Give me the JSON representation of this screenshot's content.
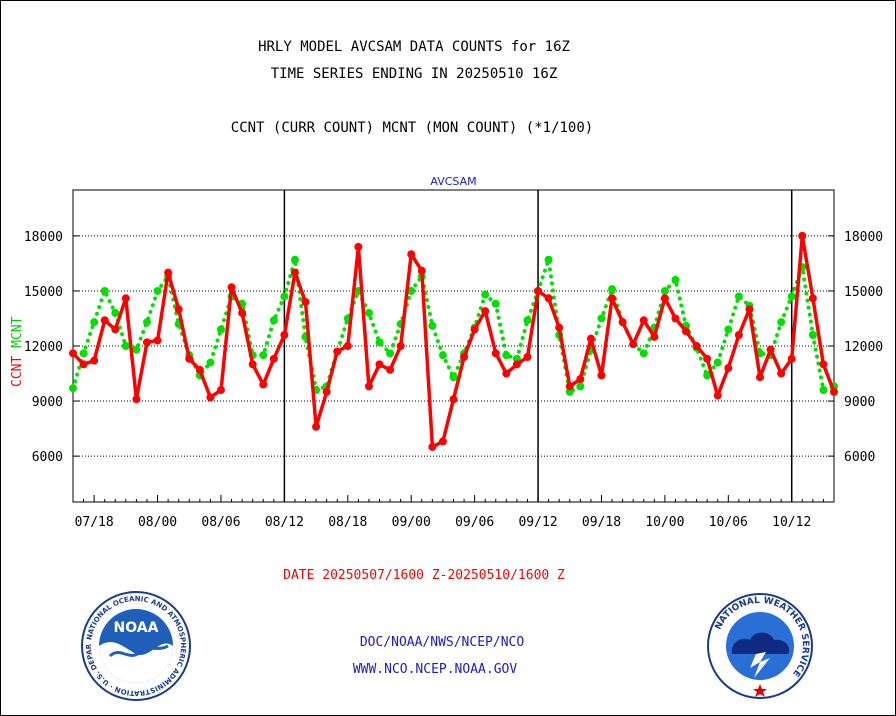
{
  "chart_data": {
    "type": "line",
    "title_lines": [
      "HRLY MODEL AVCSAM DATA COUNTS for 16Z",
      "TIME SERIES ENDING IN 20250510 16Z"
    ],
    "subtitle": "CCNT (CURR COUNT) MCNT (MON COUNT) (*1/100)",
    "panel_label": "AVCSAM",
    "ylabel_ccnt": "CCNT",
    "ylabel_mcnt": "MCNT",
    "ylim": [
      3500,
      20500
    ],
    "yticks": [
      6000,
      9000,
      12000,
      15000,
      18000
    ],
    "x_tick_labels": [
      "07/18",
      "08/00",
      "08/06",
      "08/12",
      "08/18",
      "09/00",
      "09/06",
      "09/12",
      "09/18",
      "10/00",
      "10/06",
      "10/12"
    ],
    "x_tick_hours": [
      2,
      8,
      14,
      20,
      26,
      32,
      38,
      44,
      50,
      56,
      62,
      68
    ],
    "xlim": [
      0,
      72
    ],
    "day_boundaries_hours": [
      20,
      44,
      68
    ],
    "grid": true,
    "date_range_label": "DATE 20250507/1600 Z-20250510/1600 Z",
    "series": [
      {
        "name": "CCNT",
        "color": "#ff0000",
        "style": "solid",
        "x": [
          0,
          1,
          2,
          3,
          4,
          5,
          6,
          7,
          8,
          9,
          10,
          11,
          12,
          13,
          14,
          15,
          16,
          17,
          18,
          19,
          20,
          21,
          22,
          23,
          24,
          25,
          26,
          27,
          28,
          29,
          30,
          31,
          32,
          33,
          34,
          35,
          36,
          37,
          38,
          39,
          40,
          41,
          42,
          43,
          44,
          45,
          46,
          47,
          48,
          49,
          50,
          51,
          52,
          53,
          54,
          55,
          56,
          57,
          58,
          59,
          60,
          61,
          62,
          63,
          64,
          65,
          66,
          67,
          68,
          69,
          70,
          71,
          72
        ],
        "values": [
          11600,
          11000,
          11200,
          13400,
          12900,
          14600,
          9100,
          12200,
          12300,
          16000,
          14000,
          11300,
          10700,
          9200,
          9600,
          15200,
          13800,
          11000,
          9900,
          11300,
          12600,
          16000,
          14400,
          7600,
          9500,
          11700,
          12000,
          17400,
          9800,
          11000,
          10700,
          12000,
          17000,
          16100,
          6500,
          6800,
          9100,
          11400,
          12900,
          13900,
          11600,
          10500,
          11000,
          11400,
          15000,
          14600,
          13000,
          9800,
          10200,
          12400,
          10400,
          14600,
          13300,
          12100,
          13400,
          12500,
          14600,
          13500,
          12800,
          12000,
          11300,
          9300,
          10800,
          12600,
          14000,
          10300,
          11800,
          10500,
          11300,
          18000,
          14600,
          11000,
          9500
        ]
      },
      {
        "name": "MCNT",
        "color": "#00e000",
        "style": "dotted",
        "x": [
          0,
          1,
          2,
          3,
          4,
          5,
          6,
          7,
          8,
          9,
          10,
          11,
          12,
          13,
          14,
          15,
          16,
          17,
          18,
          19,
          20,
          21,
          22,
          23,
          24,
          25,
          26,
          27,
          28,
          29,
          30,
          31,
          32,
          33,
          34,
          35,
          36,
          37,
          38,
          39,
          40,
          41,
          42,
          43,
          44,
          45,
          46,
          47,
          48,
          49,
          50,
          51,
          52,
          53,
          54,
          55,
          56,
          57,
          58,
          59,
          60,
          61,
          62,
          63,
          64,
          65,
          66,
          67,
          68,
          69,
          70,
          71,
          72
        ],
        "values": [
          9700,
          11600,
          13300,
          15000,
          13800,
          12000,
          11800,
          13300,
          15000,
          15800,
          13200,
          11500,
          10400,
          11100,
          12900,
          14700,
          14300,
          11500,
          11500,
          13400,
          14700,
          16700,
          12500,
          9600,
          9800,
          11700,
          13500,
          15000,
          13800,
          12200,
          11600,
          13200,
          15000,
          15800,
          13100,
          11500,
          10300,
          11600,
          13000,
          14800,
          14300,
          11500,
          11300,
          13400,
          15000,
          16700,
          12600,
          9500,
          9800,
          11800,
          13500,
          15100,
          13300,
          12100,
          11600,
          13000,
          15000,
          15600,
          13100,
          11900,
          10400,
          11100,
          12900,
          14700,
          14200,
          11600,
          11500,
          13300,
          14700,
          16300,
          12600,
          9600,
          9800
        ]
      }
    ]
  },
  "footer": {
    "org": "DOC/NOAA/NWS/NCEP/NCO",
    "website": "WWW.NCO.NCEP.NOAA.GOV"
  }
}
